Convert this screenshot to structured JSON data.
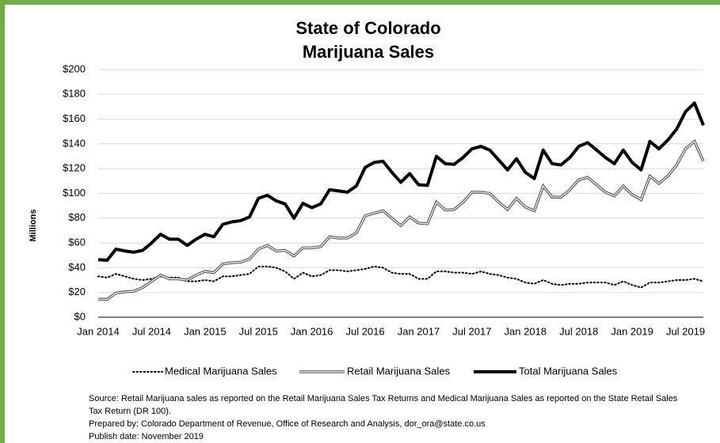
{
  "chart_data": {
    "type": "line",
    "title": [
      "State of Colorado",
      "Marijuana Sales"
    ],
    "y_label": "Millions",
    "categories": [
      "Jan 2014",
      null,
      null,
      null,
      null,
      null,
      "Jul 2014",
      null,
      null,
      null,
      null,
      null,
      "Jan 2015",
      null,
      null,
      null,
      null,
      null,
      "Jul 2015",
      null,
      null,
      null,
      null,
      null,
      "Jan 2016",
      null,
      null,
      null,
      null,
      null,
      "Jul 2016",
      null,
      null,
      null,
      null,
      null,
      "Jan 2017",
      null,
      null,
      null,
      null,
      null,
      "Jul 2017",
      null,
      null,
      null,
      null,
      null,
      "Jan 2018",
      null,
      null,
      null,
      null,
      null,
      "Jul 2018",
      null,
      null,
      null,
      null,
      null,
      "Jan 2019",
      null,
      null,
      null,
      null,
      null,
      "Jul 2019",
      null,
      null
    ],
    "series": [
      {
        "name": "Medical Marijuana Sales",
        "color": "#000000",
        "line_style": "dotted",
        "values": [
          33,
          32,
          35,
          33,
          31,
          30,
          31,
          33,
          32,
          32,
          29,
          29,
          30,
          29,
          33,
          33,
          34,
          35,
          41,
          41,
          40,
          37,
          31,
          36,
          33,
          34,
          38,
          38,
          37,
          38,
          39,
          41,
          40,
          36,
          35,
          35,
          31,
          31,
          37,
          37,
          36,
          36,
          35,
          37,
          35,
          34,
          32,
          31,
          28,
          27,
          30,
          27,
          26,
          27,
          27,
          28,
          28,
          28,
          26,
          29,
          26,
          24,
          28,
          28,
          29,
          30,
          30,
          31,
          29
        ]
      },
      {
        "name": "Retail Marijuana Sales",
        "color": "#555555",
        "line_style": "double",
        "values": [
          14.5,
          14.5,
          19.5,
          20.5,
          21,
          24,
          29,
          34,
          31,
          31,
          30,
          34,
          37,
          36,
          43,
          44,
          44.5,
          47,
          55,
          58,
          53.5,
          54,
          49.5,
          56,
          56,
          57,
          65,
          64,
          64,
          68,
          82,
          84,
          86,
          80,
          74,
          81,
          76,
          75.5,
          93,
          86.5,
          87,
          93,
          101,
          101,
          100,
          93,
          87,
          96,
          89,
          86,
          106,
          97,
          97,
          103,
          111,
          113,
          107,
          101,
          98,
          106,
          99,
          95,
          114,
          108,
          114,
          123,
          136,
          142,
          126
        ]
      },
      {
        "name": "Total Marijuana Sales",
        "color": "#000000",
        "line_style": "solid",
        "values": [
          46.5,
          46,
          55,
          53.5,
          52.5,
          54,
          60,
          67,
          63,
          63,
          58,
          63,
          67,
          65,
          75,
          77,
          78,
          81,
          96,
          98.5,
          94,
          91.5,
          80,
          92,
          88.5,
          91.5,
          103,
          102,
          101,
          106,
          121,
          125,
          126,
          117,
          109,
          116,
          107,
          106.5,
          130,
          124,
          123.5,
          129,
          136,
          138,
          135,
          127,
          119,
          128,
          117,
          112,
          135,
          124,
          123,
          129,
          138,
          141,
          135,
          129,
          124,
          135,
          125,
          119,
          142,
          136,
          143,
          152,
          166,
          173,
          155
        ]
      }
    ],
    "ylim": [
      0,
      200
    ],
    "yticks": [
      {
        "value": 0,
        "label": "$0"
      },
      {
        "value": 20,
        "label": "$20"
      },
      {
        "value": 40,
        "label": "$40"
      },
      {
        "value": 60,
        "label": "$60"
      },
      {
        "value": 80,
        "label": "$80"
      },
      {
        "value": 100,
        "label": "$100"
      },
      {
        "value": 120,
        "label": "$120"
      },
      {
        "value": 140,
        "label": "$140"
      },
      {
        "value": 160,
        "label": "$160"
      },
      {
        "value": 180,
        "label": "$180"
      },
      {
        "value": 200,
        "label": "$200"
      }
    ],
    "grid": true,
    "legend": "bottom",
    "notes": [
      "Source: Retail Marijuana sales as reported on the Retail Marijuana Sales Tax Returns and Medical Marijuana Sales as reported on the State Retail Sales",
      "Tax Return (DR 100).",
      "Prepared by: Colorado Department of Revenue, Office of Research and Analysis, dor_ora@state.co.us",
      "Publish date: November  2019"
    ]
  }
}
